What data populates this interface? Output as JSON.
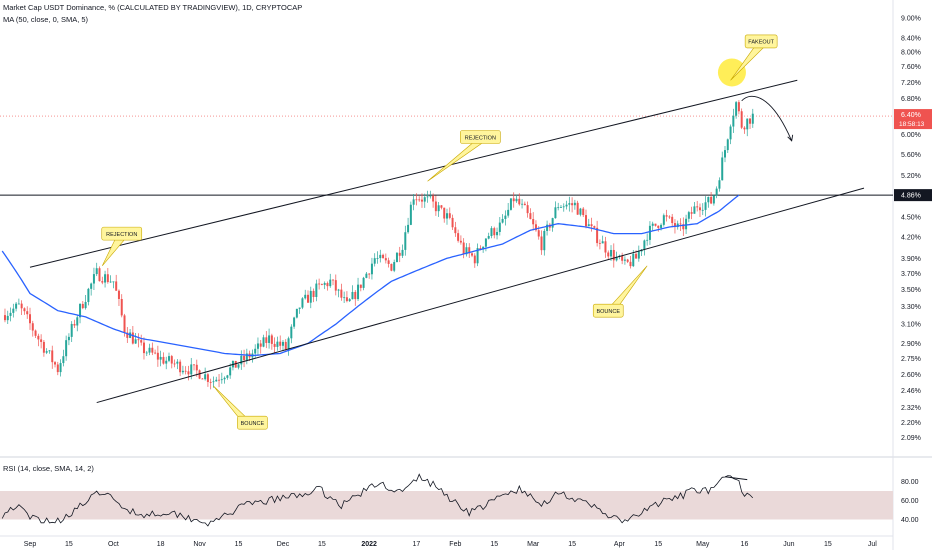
{
  "header": {
    "title": "Market Cap USDT Dominance, % (CALCULATED BY TRADINGVIEW), 1D, CRYPTOCAP",
    "ma_label": "MA (50, close, 0, SMA, 5)",
    "rsi_label": "RSI (14, close, SMA, 14, 2)"
  },
  "colors": {
    "up": "#26a69a",
    "down": "#ef5350",
    "ma": "#2962ff",
    "price_badge": "#ef5350",
    "level_badge": "#131722",
    "callout_fill": "#fff59d",
    "callout_stroke": "#c9a800",
    "rsi_band": "#ead9d9",
    "rsi_line": "#131722"
  },
  "chart_data": [
    {
      "type": "candlestick",
      "scale": "log",
      "ylim": [
        2.05,
        9.1
      ],
      "y_ticks": [
        9.0,
        8.4,
        8.0,
        7.6,
        7.2,
        6.8,
        6.4,
        6.0,
        5.6,
        5.2,
        4.86,
        4.5,
        4.2,
        3.9,
        3.7,
        3.5,
        3.3,
        3.1,
        2.9,
        2.75,
        2.6,
        2.46,
        2.32,
        2.2,
        2.09
      ],
      "y_tick_labels": [
        "9.00%",
        "8.40%",
        "8.00%",
        "7.60%",
        "7.20%",
        "6.80%",
        "6.40%",
        "6.00%",
        "5.60%",
        "5.20%",
        "4.86%",
        "4.50%",
        "4.20%",
        "3.90%",
        "3.70%",
        "3.50%",
        "3.30%",
        "3.10%",
        "2.90%",
        "2.75%",
        "2.60%",
        "2.46%",
        "2.32%",
        "2.20%",
        "2.09%"
      ],
      "x_tick_labels": [
        "Sep",
        "15",
        "Oct",
        "18",
        "Nov",
        "15",
        "Dec",
        "15",
        "2022",
        "17",
        "Feb",
        "15",
        "Mar",
        "15",
        "Apr",
        "15",
        "May",
        "16",
        "Jun",
        "15",
        "Jul"
      ],
      "x_tick_days": [
        0,
        14,
        30,
        47,
        61,
        75,
        91,
        105,
        122,
        139,
        153,
        167,
        181,
        195,
        212,
        226,
        242,
        257,
        273,
        287,
        303
      ],
      "close_keypoints": [
        [
          -10,
          3.2
        ],
        [
          -4,
          3.3
        ],
        [
          3,
          2.95
        ],
        [
          10,
          2.65
        ],
        [
          17,
          3.2
        ],
        [
          24,
          3.7
        ],
        [
          30,
          3.6
        ],
        [
          34,
          3.05
        ],
        [
          40,
          2.85
        ],
        [
          47,
          2.75
        ],
        [
          54,
          2.68
        ],
        [
          61,
          2.62
        ],
        [
          66,
          2.55
        ],
        [
          72,
          2.65
        ],
        [
          80,
          2.8
        ],
        [
          86,
          2.95
        ],
        [
          92,
          2.85
        ],
        [
          97,
          3.3
        ],
        [
          103,
          3.5
        ],
        [
          108,
          3.6
        ],
        [
          114,
          3.3
        ],
        [
          118,
          3.5
        ],
        [
          124,
          3.9
        ],
        [
          130,
          3.8
        ],
        [
          134,
          4.1
        ],
        [
          138,
          4.86
        ],
        [
          144,
          4.75
        ],
        [
          150,
          4.5
        ],
        [
          156,
          4.0
        ],
        [
          160,
          3.9
        ],
        [
          164,
          4.2
        ],
        [
          170,
          4.4
        ],
        [
          174,
          4.8
        ],
        [
          178,
          4.6
        ],
        [
          184,
          4.1
        ],
        [
          190,
          4.7
        ],
        [
          196,
          4.7
        ],
        [
          202,
          4.3
        ],
        [
          208,
          4.0
        ],
        [
          214,
          3.8
        ],
        [
          218,
          3.9
        ],
        [
          222,
          4.25
        ],
        [
          228,
          4.5
        ],
        [
          234,
          4.3
        ],
        [
          240,
          4.7
        ],
        [
          245,
          4.75
        ],
        [
          247,
          5.0
        ],
        [
          250,
          5.7
        ],
        [
          252,
          6.3
        ],
        [
          254,
          6.7
        ],
        [
          256,
          6.2
        ],
        [
          258,
          6.3
        ],
        [
          260,
          6.4
        ]
      ],
      "ma50_keypoints": [
        [
          -10,
          4.0
        ],
        [
          0,
          3.45
        ],
        [
          10,
          3.25
        ],
        [
          20,
          3.18
        ],
        [
          30,
          3.05
        ],
        [
          40,
          2.95
        ],
        [
          50,
          2.9
        ],
        [
          60,
          2.85
        ],
        [
          70,
          2.8
        ],
        [
          80,
          2.78
        ],
        [
          90,
          2.8
        ],
        [
          100,
          2.9
        ],
        [
          110,
          3.1
        ],
        [
          120,
          3.35
        ],
        [
          130,
          3.6
        ],
        [
          140,
          3.75
        ],
        [
          150,
          3.9
        ],
        [
          160,
          4.0
        ],
        [
          170,
          4.1
        ],
        [
          180,
          4.3
        ],
        [
          190,
          4.4
        ],
        [
          200,
          4.35
        ],
        [
          210,
          4.25
        ],
        [
          220,
          4.25
        ],
        [
          230,
          4.35
        ],
        [
          240,
          4.4
        ],
        [
          248,
          4.6
        ],
        [
          255,
          4.86
        ]
      ],
      "annotations": [
        {
          "kind": "horizontal_line",
          "value": 4.86
        },
        {
          "kind": "horizontal_line",
          "value": 6.4,
          "style": "dotted"
        },
        {
          "kind": "trend_line",
          "points": [
            [
              0,
              3.78
            ],
            [
              276,
              7.25
            ]
          ]
        },
        {
          "kind": "trend_line",
          "points": [
            [
              24,
              2.36
            ],
            [
              300,
              4.98
            ]
          ]
        }
      ],
      "price_badge": {
        "value": "6.40%",
        "countdown": "18:58:13"
      },
      "level_badge": {
        "value": "4.86%"
      },
      "callouts": [
        "REJECTION",
        "REJECTION",
        "BOUNCE",
        "BOUNCE",
        "FAKEOUT"
      ]
    },
    {
      "type": "line",
      "series": [
        {
          "name": "RSI",
          "keypoints": [
            [
              -10,
              45
            ],
            [
              -5,
              55
            ],
            [
              0,
              42
            ],
            [
              5,
              40
            ],
            [
              10,
              38
            ],
            [
              20,
              58
            ],
            [
              26,
              70
            ],
            [
              32,
              55
            ],
            [
              40,
              45
            ],
            [
              50,
              48
            ],
            [
              60,
              40
            ],
            [
              66,
              35
            ],
            [
              70,
              45
            ],
            [
              78,
              55
            ],
            [
              86,
              60
            ],
            [
              96,
              65
            ],
            [
              104,
              72
            ],
            [
              112,
              55
            ],
            [
              120,
              70
            ],
            [
              126,
              78
            ],
            [
              134,
              68
            ],
            [
              140,
              85
            ],
            [
              146,
              75
            ],
            [
              152,
              60
            ],
            [
              158,
              48
            ],
            [
              164,
              55
            ],
            [
              170,
              65
            ],
            [
              176,
              72
            ],
            [
              184,
              55
            ],
            [
              190,
              70
            ],
            [
              198,
              58
            ],
            [
              204,
              52
            ],
            [
              212,
              38
            ],
            [
              218,
              42
            ],
            [
              224,
              55
            ],
            [
              232,
              62
            ],
            [
              240,
              72
            ],
            [
              246,
              70
            ],
            [
              250,
              85
            ],
            [
              254,
              82
            ],
            [
              257,
              68
            ],
            [
              260,
              66
            ]
          ]
        }
      ],
      "ylim": [
        30,
        90
      ],
      "y_ticks": [
        80,
        60,
        40
      ],
      "y_tick_labels": [
        "80.00",
        "60.00",
        "40.00"
      ],
      "band": [
        40,
        70
      ]
    }
  ]
}
